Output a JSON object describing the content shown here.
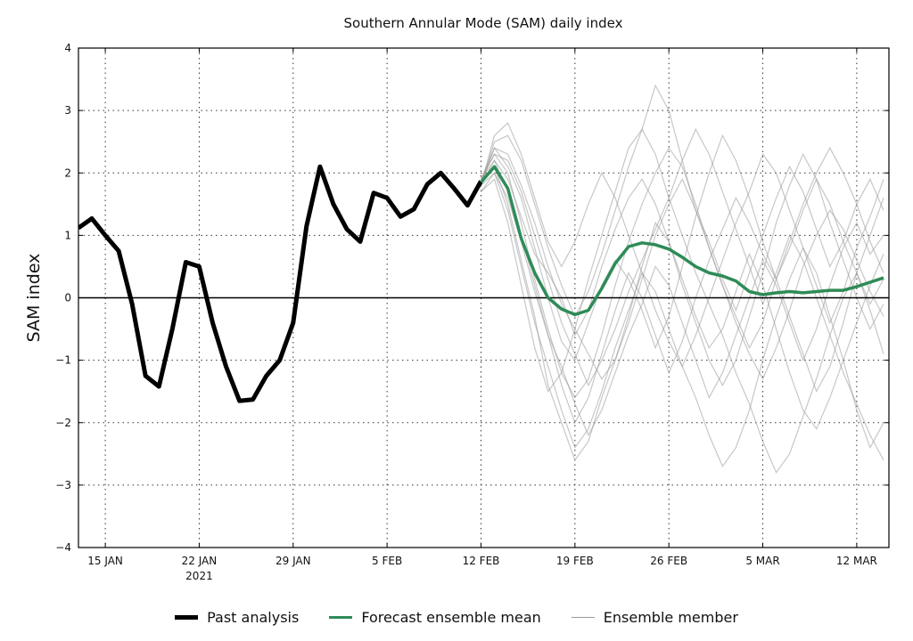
{
  "chart_data": {
    "type": "line",
    "title": "Southern Annular Mode (SAM) daily index",
    "xlabel": "",
    "ylabel": "SAM index",
    "ylim": [
      -4,
      4
    ],
    "yticks": [
      "4",
      "3",
      "2",
      "1",
      "0",
      "−1",
      "−2",
      "−3",
      "−4"
    ],
    "ytick_values": [
      4,
      3,
      2,
      1,
      0,
      -1,
      -2,
      -3,
      -4
    ],
    "xlim": [
      "2021-01-13",
      "2021-03-14"
    ],
    "xticks": [
      {
        "date": "2021-01-15",
        "label": "15 JAN",
        "sub": ""
      },
      {
        "date": "2021-01-22",
        "label": "22 JAN",
        "sub": "2021"
      },
      {
        "date": "2021-01-29",
        "label": "29 JAN",
        "sub": ""
      },
      {
        "date": "2021-02-05",
        "label": "5 FEB",
        "sub": ""
      },
      {
        "date": "2021-02-12",
        "label": "12 FEB",
        "sub": ""
      },
      {
        "date": "2021-02-19",
        "label": "19 FEB",
        "sub": ""
      },
      {
        "date": "2021-02-26",
        "label": "26 FEB",
        "sub": ""
      },
      {
        "date": "2021-03-05",
        "label": "5 MAR",
        "sub": ""
      },
      {
        "date": "2021-03-12",
        "label": "12 MAR",
        "sub": ""
      }
    ],
    "grid": true,
    "legend_position": "bottom",
    "colors": {
      "past": "#000000",
      "mean": "#2e8b57",
      "member": "#999999",
      "zero_line": "#000000"
    },
    "series": [
      {
        "name": "Past analysis",
        "start": "2021-01-13",
        "step_days": 1,
        "values": [
          1.12,
          1.27,
          1.0,
          0.75,
          -0.1,
          -1.25,
          -1.42,
          -0.5,
          0.57,
          0.5,
          -0.4,
          -1.1,
          -1.65,
          -1.63,
          -1.25,
          -1.0,
          -0.4,
          1.15,
          2.1,
          1.5,
          1.1,
          0.9,
          1.68,
          1.6,
          1.3,
          1.42,
          1.82,
          2.0,
          1.75,
          1.48,
          1.87
        ]
      },
      {
        "name": "Forecast ensemble mean",
        "start": "2021-02-12",
        "step_days": 1,
        "values": [
          1.85,
          2.1,
          1.75,
          0.95,
          0.4,
          0.0,
          -0.18,
          -0.27,
          -0.2,
          0.15,
          0.55,
          0.82,
          0.88,
          0.85,
          0.78,
          0.65,
          0.5,
          0.4,
          0.35,
          0.27,
          0.1,
          0.05,
          0.08,
          0.1,
          0.08,
          0.1,
          0.12,
          0.12,
          0.18,
          0.25,
          0.32
        ]
      },
      {
        "name": "Ensemble member",
        "start": "2021-02-12",
        "step_days": 1,
        "members": [
          [
            1.9,
            2.3,
            2.0,
            1.2,
            0.3,
            -0.5,
            -1.2,
            -1.6,
            -1.3,
            -0.6,
            0.2,
            0.9,
            1.5,
            2.0,
            2.4,
            2.1,
            1.5,
            0.8,
            0.2,
            -0.4,
            -0.9,
            -1.3,
            -0.8,
            -0.2,
            0.5,
            1.0,
            1.4,
            1.1,
            0.6,
            0.1,
            -0.3
          ],
          [
            1.8,
            2.5,
            2.6,
            2.2,
            1.5,
            0.8,
            0.2,
            -0.3,
            0.1,
            0.7,
            1.4,
            2.1,
            2.7,
            3.4,
            3.0,
            2.2,
            1.4,
            0.9,
            0.3,
            -0.2,
            0.4,
            1.0,
            1.6,
            2.1,
            1.7,
            1.1,
            0.5,
            0.9,
            1.5,
            1.9,
            1.4
          ],
          [
            1.7,
            2.0,
            1.4,
            0.5,
            -0.4,
            -1.1,
            -1.8,
            -2.4,
            -2.1,
            -1.5,
            -0.8,
            -0.2,
            0.4,
            0.1,
            -0.5,
            -1.1,
            -1.6,
            -2.2,
            -2.7,
            -2.4,
            -1.8,
            -1.0,
            -0.3,
            0.3,
            0.8,
            0.4,
            -0.3,
            -1.0,
            -1.8,
            -2.4,
            -2.0
          ],
          [
            1.9,
            2.2,
            1.9,
            1.3,
            0.7,
            0.4,
            0.0,
            -0.6,
            -0.2,
            0.5,
            1.1,
            1.6,
            1.9,
            1.5,
            0.9,
            0.2,
            -0.4,
            -1.0,
            -1.4,
            -1.0,
            -0.3,
            0.4,
            1.2,
            1.8,
            2.3,
            1.9,
            1.2,
            0.6,
            0.0,
            -0.5,
            -0.1
          ],
          [
            1.8,
            2.4,
            2.1,
            1.6,
            0.8,
            0.0,
            -0.7,
            -1.0,
            -0.4,
            0.2,
            0.6,
            0.3,
            -0.2,
            -0.8,
            -0.3,
            0.5,
            1.3,
            2.0,
            2.6,
            2.2,
            1.6,
            0.9,
            0.3,
            -0.3,
            -0.9,
            -1.5,
            -1.1,
            -0.4,
            0.4,
            1.0,
            1.6
          ],
          [
            1.9,
            2.1,
            1.5,
            0.6,
            -0.3,
            -1.4,
            -2.0,
            -2.6,
            -2.3,
            -1.6,
            -1.0,
            -0.3,
            0.5,
            1.2,
            0.9,
            0.3,
            -0.3,
            -0.8,
            -0.5,
            0.1,
            0.7,
            0.2,
            -0.5,
            -1.2,
            -1.8,
            -2.1,
            -1.6,
            -1.0,
            -0.4,
            0.2,
            0.7
          ],
          [
            1.8,
            2.6,
            2.8,
            2.3,
            1.6,
            0.9,
            0.5,
            0.9,
            1.5,
            2.0,
            1.6,
            1.0,
            0.4,
            -0.2,
            -0.7,
            -1.1,
            -0.6,
            0.0,
            0.6,
            1.2,
            1.7,
            2.3,
            2.0,
            1.4,
            0.8,
            0.2,
            -0.4,
            0.1,
            0.8,
            1.3,
            1.9
          ],
          [
            1.7,
            1.9,
            1.2,
            0.2,
            -0.8,
            -1.5,
            -1.2,
            -0.5,
            0.3,
            1.0,
            1.7,
            2.4,
            2.7,
            2.3,
            1.6,
            1.0,
            0.4,
            -0.1,
            -0.6,
            -1.2,
            -1.7,
            -2.3,
            -2.8,
            -2.5,
            -1.9,
            -1.3,
            -0.6,
            0.0,
            0.4,
            -0.2,
            -0.9
          ],
          [
            1.9,
            2.3,
            2.2,
            1.7,
            1.0,
            0.3,
            -0.4,
            -0.9,
            -1.4,
            -1.0,
            -0.5,
            0.1,
            0.6,
            1.1,
            1.6,
            2.2,
            2.7,
            2.3,
            1.7,
            1.1,
            0.5,
            -0.1,
            0.4,
            1.0,
            0.6,
            0.0,
            -0.6,
            -1.2,
            -1.7,
            -2.2,
            -2.6
          ],
          [
            1.8,
            2.0,
            1.6,
            0.9,
            0.1,
            -0.6,
            -1.4,
            -2.0,
            -1.6,
            -0.9,
            -0.2,
            0.4,
            0.0,
            -0.6,
            -1.2,
            -0.7,
            0.0,
            0.6,
            1.1,
            1.6,
            1.2,
            0.7,
            0.3,
            0.8,
            1.4,
            1.9,
            1.5,
            0.9,
            0.4,
            -0.1,
            0.3
          ],
          [
            1.9,
            2.4,
            2.3,
            1.8,
            1.2,
            0.5,
            -0.1,
            -0.5,
            -0.9,
            -1.3,
            -1.0,
            -0.4,
            0.3,
            1.0,
            1.5,
            1.9,
            1.4,
            0.8,
            0.2,
            -0.3,
            -0.8,
            -0.4,
            0.3,
            0.9,
            1.5,
            2.0,
            2.4,
            2.0,
            1.5,
            0.9,
            0.4
          ],
          [
            1.8,
            2.2,
            1.7,
            1.0,
            0.2,
            -0.6,
            -1.1,
            -1.7,
            -2.2,
            -1.8,
            -1.2,
            -0.6,
            -0.1,
            0.5,
            0.2,
            -0.4,
            -1.0,
            -1.6,
            -1.2,
            -0.6,
            0.0,
            0.6,
            0.2,
            -0.4,
            -1.0,
            -0.5,
            0.2,
            0.8,
            1.2,
            0.7,
            1.0
          ]
        ]
      }
    ],
    "legend": [
      "Past analysis",
      "Forecast ensemble mean",
      "Ensemble member"
    ]
  }
}
